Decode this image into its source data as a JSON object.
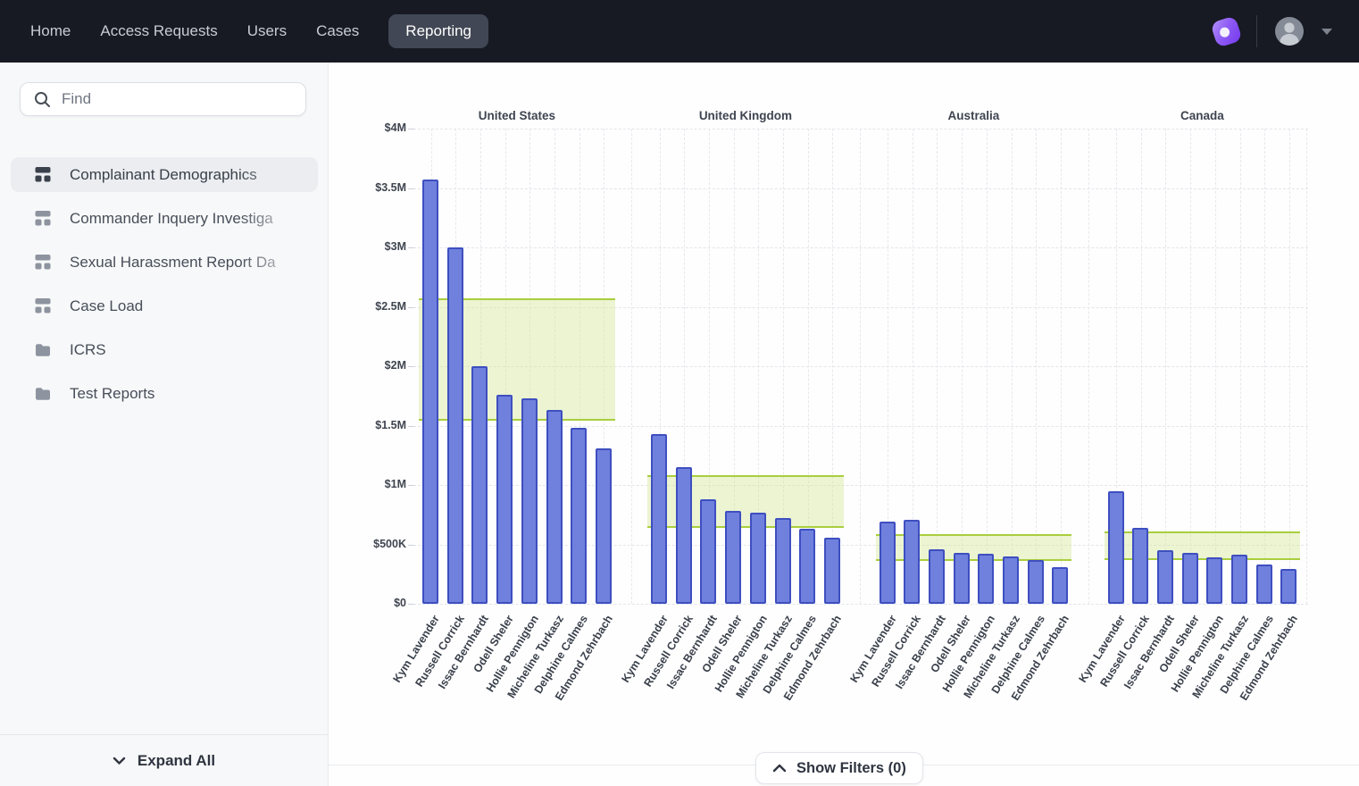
{
  "nav": {
    "items": [
      {
        "label": "Home",
        "active": false
      },
      {
        "label": "Access Requests",
        "active": false
      },
      {
        "label": "Users",
        "active": false
      },
      {
        "label": "Cases",
        "active": false
      },
      {
        "label": "Reporting",
        "active": true
      }
    ]
  },
  "sidebar": {
    "search": {
      "placeholder": "Find"
    },
    "items": [
      {
        "label": "Complainant Demographics",
        "icon": "dashboard",
        "active": true,
        "faded": true
      },
      {
        "label": "Commander Inquery Investiga",
        "icon": "dashboard",
        "active": false,
        "faded": true
      },
      {
        "label": "Sexual Harassment Report Da",
        "icon": "dashboard",
        "active": false,
        "faded": true
      },
      {
        "label": "Case Load",
        "icon": "dashboard",
        "active": false,
        "faded": false
      },
      {
        "label": "ICRS",
        "icon": "folder",
        "active": false,
        "faded": false
      },
      {
        "label": "Test Reports",
        "icon": "folder",
        "active": false,
        "faded": false
      }
    ],
    "expand_all_label": "Expand All"
  },
  "footer": {
    "show_filters_label": "Show Filters (0)"
  },
  "chart_data": {
    "type": "bar",
    "title": "",
    "unit": "USD millions",
    "categories": [
      "Kym Lavender",
      "Russell Corrick",
      "Issac Bernhardt",
      "Odell Sheler",
      "Hollie Pennigton",
      "Micheline Turkasz",
      "Delphine Calmes",
      "Edmond Zehrbach"
    ],
    "groups": [
      {
        "name": "United States",
        "values": [
          3.57,
          3.0,
          2.0,
          1.76,
          1.73,
          1.63,
          1.48,
          1.31
        ],
        "band": [
          1.54,
          2.57
        ]
      },
      {
        "name": "United Kingdom",
        "values": [
          1.43,
          1.15,
          0.88,
          0.78,
          0.77,
          0.72,
          0.63,
          0.56
        ],
        "band": [
          0.64,
          1.08
        ]
      },
      {
        "name": "Australia",
        "values": [
          0.69,
          0.71,
          0.46,
          0.43,
          0.42,
          0.4,
          0.37,
          0.31
        ],
        "band": [
          0.36,
          0.59
        ]
      },
      {
        "name": "Canada",
        "values": [
          0.95,
          0.64,
          0.45,
          0.43,
          0.39,
          0.41,
          0.33,
          0.29
        ],
        "band": [
          0.37,
          0.61
        ]
      }
    ],
    "ylim_millions": [
      0,
      4
    ],
    "ytick_labels": [
      "$0",
      "$500K",
      "$1M",
      "$1.5M",
      "$2M",
      "$2.5M",
      "$3M",
      "$3.5M",
      "$4M"
    ],
    "grid": true,
    "legend": "none",
    "colors": {
      "bar_fill": "#7080dd",
      "bar_border": "#3e4fc0",
      "band_line": "#a9ce3d",
      "band_fill": "rgba(213,231,150,0.42)"
    }
  },
  "colors": {
    "nav_bg": "#171a23",
    "brand_purple": "#8f5cf5",
    "sidebar_bg": "#f7f8f9"
  }
}
